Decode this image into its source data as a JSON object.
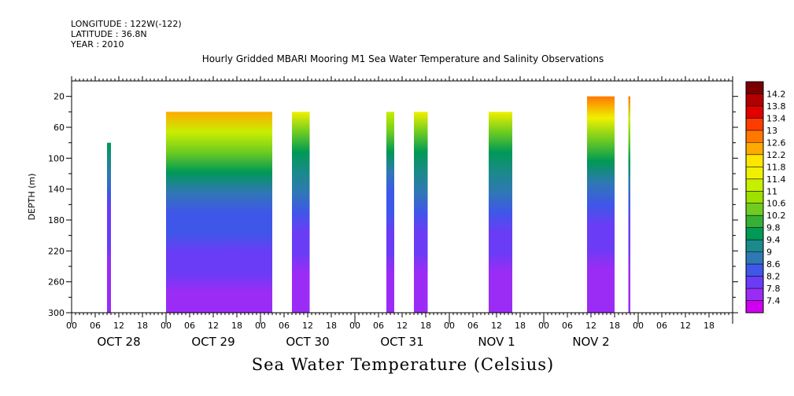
{
  "meta": {
    "longitude": "LONGITUDE : 122W(-122)",
    "latitude": "LATITUDE : 36.8N",
    "year": "YEAR : 2010"
  },
  "chart_data": {
    "type": "heatmap",
    "title": "Hourly Gridded MBARI Mooring M1 Sea Water Temperature and Salinity Observations",
    "bottom_title": "Sea Water Temperature (Celsius)",
    "ylabel": "DEPTH (m)",
    "y_range": [
      0,
      300
    ],
    "y_inverted": true,
    "y_ticks": [
      20,
      60,
      100,
      140,
      180,
      220,
      260,
      300
    ],
    "x_range_hours": [
      0,
      168
    ],
    "x_ticks_hours": [
      0,
      6,
      12,
      18
    ],
    "days": [
      "OCT 28",
      "OCT 29",
      "OCT 30",
      "OCT 31",
      "NOV  1",
      "NOV  2"
    ],
    "colorbar": {
      "values": [
        14.2,
        13.8,
        13.4,
        13,
        12.6,
        12.2,
        11.8,
        11.4,
        11,
        10.6,
        10.2,
        9.8,
        9.4,
        9,
        8.6,
        8.2,
        7.8,
        7.4
      ],
      "colors": [
        "#7a0000",
        "#b20000",
        "#e00000",
        "#ff3c00",
        "#ff7800",
        "#ffaa00",
        "#ffe600",
        "#f0f000",
        "#c8ee00",
        "#9ee000",
        "#6fcc20",
        "#35b035",
        "#009955",
        "#1a8a8a",
        "#2f78b4",
        "#3f57e8",
        "#6a3cf5",
        "#9b2cf5",
        "#d000f0"
      ]
    },
    "blocks": [
      {
        "start_hour": 9,
        "end_hour": 10,
        "top_depth": 80,
        "surface": 9.6
      },
      {
        "start_hour": 24,
        "end_hour": 51,
        "top_depth": 40,
        "surface": 12.4
      },
      {
        "start_hour": 56,
        "end_hour": 60.5,
        "top_depth": 40,
        "surface": 11.6
      },
      {
        "start_hour": 80,
        "end_hour": 82,
        "top_depth": 40,
        "surface": 11.2
      },
      {
        "start_hour": 87,
        "end_hour": 90.5,
        "top_depth": 40,
        "surface": 11.4
      },
      {
        "start_hour": 106,
        "end_hour": 112,
        "top_depth": 40,
        "surface": 11.6
      },
      {
        "start_hour": 131,
        "end_hour": 138,
        "top_depth": 20,
        "surface": 12.8
      },
      {
        "start_hour": 141.5,
        "end_hour": 142,
        "top_depth": 20,
        "surface": 12.6
      }
    ]
  }
}
